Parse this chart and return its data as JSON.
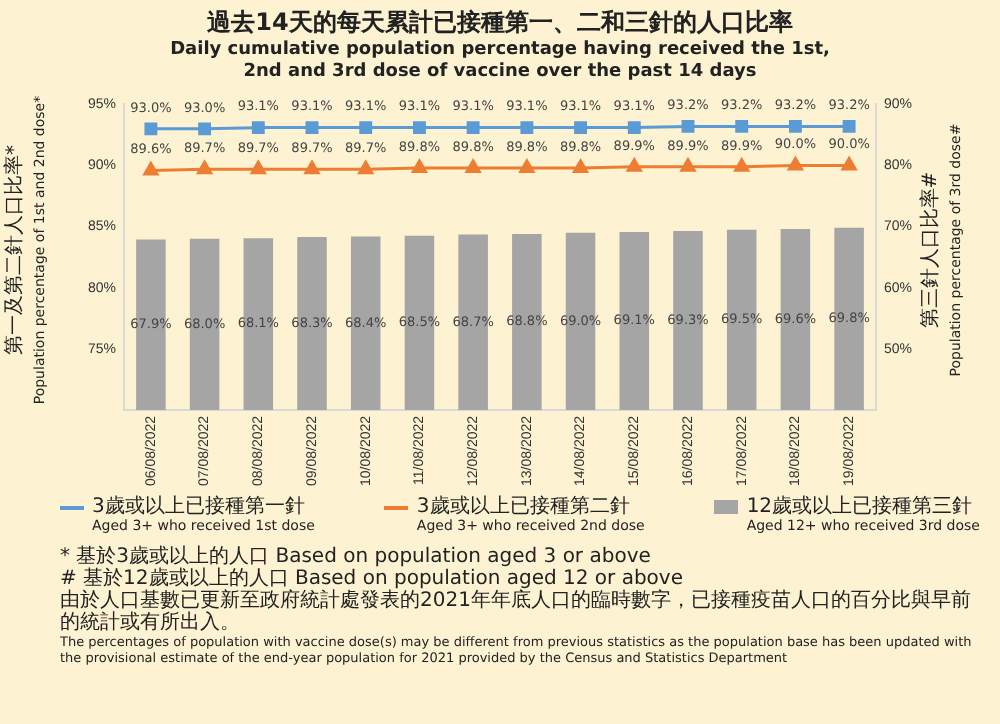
{
  "chart_data": {
    "type": "line",
    "title": "過去14天的每天累計已接種第一、二和三針的人口比率",
    "subtitle": "Daily cumulative population percentage having received the 1st, 2nd and 3rd dose of vaccine over the past 14 days",
    "ylabel": "第一及第二針人口比率* Population percentage of 1st and 2nd dose*",
    "y2label": "第三針人口比率# Population percentage of 3rd dose#",
    "categories": [
      "06/08/2022",
      "07/08/2022",
      "08/08/2022",
      "09/08/2022",
      "10/08/2022",
      "11/08/2022",
      "12/08/2022",
      "13/08/2022",
      "14/08/2022",
      "15/08/2022",
      "16/08/2022",
      "17/08/2022",
      "18/08/2022",
      "19/08/2022"
    ],
    "series": [
      {
        "name": "3歲或以上已接種第一針\nAged 3+ who received 1st dose",
        "axis": "y",
        "color": "#5b9bd5",
        "marker": "square",
        "values": [
          93.0,
          93.0,
          93.1,
          93.1,
          93.1,
          93.1,
          93.1,
          93.1,
          93.1,
          93.1,
          93.2,
          93.2,
          93.2,
          93.2
        ],
        "value_labels": [
          "93.0%",
          "93.0%",
          "93.1%",
          "93.1%",
          "93.1%",
          "93.1%",
          "93.1%",
          "93.1%",
          "93.1%",
          "93.1%",
          "93.2%",
          "93.2%",
          "93.2%",
          "93.2%"
        ]
      },
      {
        "name": "3歲或以上已接種第二針\nAged 3+ who received 2nd dose",
        "axis": "y",
        "color": "#ed7d31",
        "marker": "triangle",
        "values": [
          89.6,
          89.7,
          89.7,
          89.7,
          89.7,
          89.8,
          89.8,
          89.8,
          89.8,
          89.9,
          89.9,
          89.9,
          90.0,
          90.0
        ],
        "value_labels": [
          "89.6%",
          "89.7%",
          "89.7%",
          "89.7%",
          "89.7%",
          "89.8%",
          "89.8%",
          "89.8%",
          "89.8%",
          "89.9%",
          "89.9%",
          "89.9%",
          "90.0%",
          "90.0%"
        ]
      },
      {
        "name": "12歲或以上已接種第三針\nAged 12+ who received 3rd dose",
        "type": "bar",
        "axis": "y2",
        "color": "#a5a5a5",
        "values": [
          67.9,
          68.0,
          68.1,
          68.3,
          68.4,
          68.5,
          68.7,
          68.8,
          69.0,
          69.1,
          69.3,
          69.5,
          69.6,
          69.8
        ],
        "value_labels": [
          "67.9%",
          "68.0%",
          "68.1%",
          "68.3%",
          "68.4%",
          "68.5%",
          "68.7%",
          "68.8%",
          "69.0%",
          "69.1%",
          "69.3%",
          "69.5%",
          "69.6%",
          "69.8%"
        ]
      }
    ],
    "ylim": [
      70,
      95
    ],
    "yticks": [
      {
        "value": 75,
        "label": "75%"
      },
      {
        "value": 80,
        "label": "80%"
      },
      {
        "value": 85,
        "label": "85%"
      },
      {
        "value": 90,
        "label": "90%"
      },
      {
        "value": 95,
        "label": "95%"
      }
    ],
    "y2lim": [
      40,
      90
    ],
    "y2ticks": [
      {
        "value": 50,
        "label": "50%"
      },
      {
        "value": 60,
        "label": "60%"
      },
      {
        "value": 70,
        "label": "70%"
      },
      {
        "value": 80,
        "label": "80%"
      },
      {
        "value": 90,
        "label": "90%"
      }
    ],
    "legend": "bottom",
    "annotations": [
      "* 基於3歲或以上的人口 Based on population aged 3 or above",
      "# 基於12歲或以上的人口 Based on population aged 12 or above",
      "由於人口基數已更新至政府統計處發表的2021年年底人口的臨時數字，已接種疫苗人口的百分比與早前的統計或有所出入。",
      "The percentages of population with vaccine dose(s) may be different from previous statistics as the population base has been updated with the provisional estimate of the end-year population for 2021 provided by the Census and Statistics Department"
    ]
  }
}
